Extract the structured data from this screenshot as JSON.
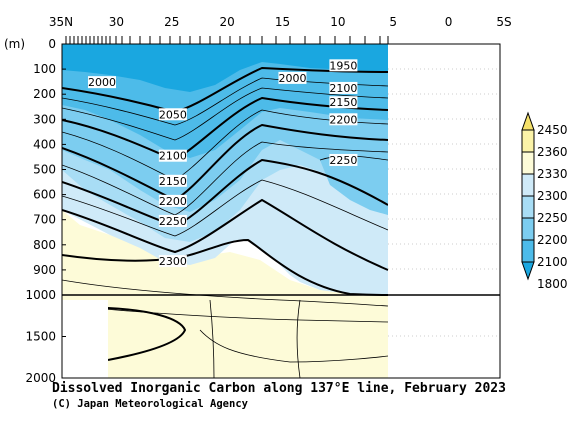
{
  "caption": {
    "title": "Dissolved Inorganic Carbon along 137°E line, February 2023",
    "credit": "(C) Japan Meteorological Agency"
  },
  "chart_data": {
    "type": "heatmap",
    "title": "Dissolved Inorganic Carbon along 137°E line, February 2023",
    "x_ticks": [
      {
        "lat": 35,
        "label": "35N"
      },
      {
        "lat": 30,
        "label": "30"
      },
      {
        "lat": 25,
        "label": "25"
      },
      {
        "lat": 20,
        "label": "20"
      },
      {
        "lat": 15,
        "label": "15"
      },
      {
        "lat": 10,
        "label": "10"
      },
      {
        "lat": 5,
        "label": "5"
      },
      {
        "lat": 0,
        "label": "0"
      },
      {
        "lat": -5,
        "label": "5S"
      }
    ],
    "xlim": [
      35,
      -5
    ],
    "y_unit_label": "(m)",
    "y_ticks_upper": [
      0,
      100,
      200,
      300,
      400,
      500,
      600,
      700,
      800,
      900,
      1000
    ],
    "y_ticks_lower": [
      1500,
      2000
    ],
    "ylim": [
      0,
      2000
    ],
    "scale_break_depth": 1000,
    "data_extent_lat": [
      34,
      5
    ],
    "colorbar": {
      "levels": [
        "1800",
        "2100",
        "2200",
        "2250",
        "2300",
        "2330",
        "2360",
        "2450"
      ],
      "colors": [
        "#1aa7e0",
        "#4dbbe9",
        "#7ccdf0",
        "#a8ddf5",
        "#cfeaf8",
        "#fdfbd8",
        "#fbf3a8",
        "#f5e16a"
      ]
    },
    "contour_labels": [
      {
        "text": "1950",
        "lat": 9.5,
        "depth": 85
      },
      {
        "text": "2000",
        "lat": 31.3,
        "depth": 152
      },
      {
        "text": "2000",
        "lat": 14.1,
        "depth": 135
      },
      {
        "text": "2050",
        "lat": 24.9,
        "depth": 280
      },
      {
        "text": "2100",
        "lat": 9.5,
        "depth": 175
      },
      {
        "text": "2150",
        "lat": 9.5,
        "depth": 232
      },
      {
        "text": "2200",
        "lat": 9.5,
        "depth": 300
      },
      {
        "text": "2100",
        "lat": 24.9,
        "depth": 445
      },
      {
        "text": "2250",
        "lat": 9.5,
        "depth": 462
      },
      {
        "text": "2150",
        "lat": 24.9,
        "depth": 545
      },
      {
        "text": "2200",
        "lat": 24.9,
        "depth": 625
      },
      {
        "text": "2250",
        "lat": 24.9,
        "depth": 705
      },
      {
        "text": "2300",
        "lat": 24.9,
        "depth": 865
      }
    ]
  }
}
